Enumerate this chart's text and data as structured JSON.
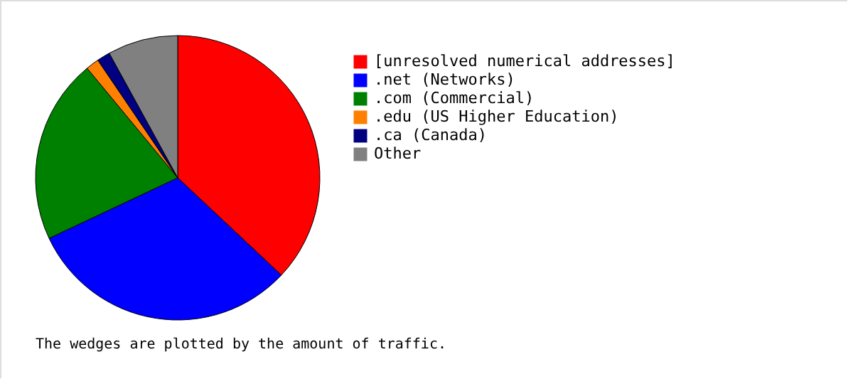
{
  "chart_data": {
    "type": "pie",
    "categories": [
      "[unresolved numerical addresses]",
      ".net (Networks)",
      ".com (Commercial)",
      ".edu (US Higher Education)",
      ".ca (Canada)",
      "Other"
    ],
    "values": [
      37,
      31,
      21,
      1.5,
      1.5,
      8
    ],
    "colors": [
      "#ff0000",
      "#0000ff",
      "#008000",
      "#ff8000",
      "#000080",
      "#808080"
    ],
    "legend": "right",
    "annotations": [
      "The wedges are plotted by the amount of traffic."
    ]
  }
}
